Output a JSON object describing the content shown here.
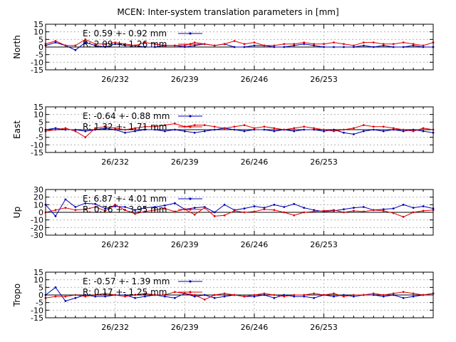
{
  "title": "MCEN: Inter-system translation parameters in [mm]",
  "colors": {
    "E": "#0000b4",
    "R": "#dd0000",
    "grid": "#a8a8a8"
  },
  "chart_data": [
    {
      "type": "line",
      "ylabel": "North",
      "xlim": [
        225,
        264
      ],
      "ylim": [
        -15,
        15
      ],
      "yticks": [
        "15",
        "10",
        "5",
        "0",
        "-5",
        "-10",
        "-15"
      ],
      "ytick_values": [
        15,
        10,
        5,
        0,
        -5,
        -10,
        -15
      ],
      "xticks": [
        "26/232",
        "26/239",
        "26/246",
        "26/253"
      ],
      "xtick_values": [
        232,
        239,
        246,
        253
      ],
      "grid": true,
      "legend_placement": "top-left",
      "x": [
        225,
        226,
        227,
        228,
        229,
        230,
        231,
        232,
        233,
        234,
        235,
        236,
        237,
        238,
        239,
        240,
        241,
        242,
        243,
        244,
        245,
        246,
        247,
        248,
        249,
        250,
        251,
        252,
        253,
        254,
        255,
        256,
        257,
        258,
        259,
        260,
        261,
        262,
        263,
        264
      ],
      "series": [
        {
          "name": "E",
          "legend": "E:  0.59 +- 0.92 mm",
          "values": [
            1,
            3,
            1,
            -2,
            3,
            1,
            0,
            2,
            1,
            1,
            0,
            0,
            1,
            1,
            0,
            1,
            2,
            1,
            2,
            0,
            0,
            1,
            1,
            0,
            0,
            1,
            2,
            1,
            0,
            0,
            0,
            0,
            1,
            0,
            1,
            0,
            0,
            1,
            0,
            0
          ]
        },
        {
          "name": "R",
          "legend": "R:  2.09 +- 1.26 mm",
          "values": [
            2,
            4,
            1,
            1,
            5,
            2,
            2,
            3,
            2,
            1,
            3,
            2,
            1,
            1,
            1,
            3,
            2,
            1,
            2,
            4,
            2,
            3,
            1,
            1,
            2,
            2,
            3,
            2,
            2,
            3,
            2,
            1,
            3,
            3,
            2,
            2,
            3,
            2,
            1,
            3
          ]
        }
      ]
    },
    {
      "type": "line",
      "ylabel": "East",
      "xlim": [
        225,
        264
      ],
      "ylim": [
        -15,
        15
      ],
      "yticks": [
        "15",
        "10",
        "5",
        "0",
        "-5",
        "-10",
        "-15"
      ],
      "ytick_values": [
        15,
        10,
        5,
        0,
        -5,
        -10,
        -15
      ],
      "xticks": [
        "26/232",
        "26/239",
        "26/246",
        "26/253"
      ],
      "xtick_values": [
        232,
        239,
        246,
        253
      ],
      "grid": true,
      "legend_placement": "top-left",
      "x": [
        225,
        226,
        227,
        228,
        229,
        230,
        231,
        232,
        233,
        234,
        235,
        236,
        237,
        238,
        239,
        240,
        241,
        242,
        243,
        244,
        245,
        246,
        247,
        248,
        249,
        250,
        251,
        252,
        253,
        254,
        255,
        256,
        257,
        258,
        259,
        260,
        261,
        262,
        263,
        264
      ],
      "series": [
        {
          "name": "E",
          "legend": "E:  -0.64 +- 0.88 mm",
          "values": [
            0,
            1,
            0,
            0,
            -1,
            0,
            1,
            0,
            -2,
            -1,
            0,
            0,
            -1,
            0,
            -1,
            -2,
            -1,
            0,
            1,
            0,
            -1,
            0,
            0,
            -1,
            0,
            -1,
            0,
            0,
            -1,
            0,
            -2,
            -3,
            -1,
            0,
            -1,
            0,
            -1,
            0,
            -1,
            -2
          ]
        },
        {
          "name": "R",
          "legend": "R:  1.32 +- 1.71 mm",
          "values": [
            -1,
            0,
            1,
            -1,
            -5,
            1,
            2,
            1,
            0,
            1,
            2,
            2,
            3,
            4,
            2,
            3,
            3,
            2,
            1,
            2,
            3,
            1,
            2,
            1,
            0,
            1,
            2,
            1,
            0,
            -1,
            0,
            1,
            3,
            2,
            2,
            1,
            0,
            -1,
            1,
            0
          ]
        }
      ]
    },
    {
      "type": "line",
      "ylabel": "Up",
      "xlim": [
        225,
        264
      ],
      "ylim": [
        -30,
        30
      ],
      "yticks": [
        "30",
        "20",
        "10",
        "0",
        "-10",
        "-20",
        "-30"
      ],
      "ytick_values": [
        30,
        20,
        10,
        0,
        -10,
        -20,
        -30
      ],
      "xticks": [
        "26/232",
        "26/239",
        "26/246",
        "26/253"
      ],
      "xtick_values": [
        232,
        239,
        246,
        253
      ],
      "grid": true,
      "legend_placement": "top-left",
      "x": [
        225,
        226,
        227,
        228,
        229,
        230,
        231,
        232,
        233,
        234,
        235,
        236,
        237,
        238,
        239,
        240,
        241,
        242,
        243,
        244,
        245,
        246,
        247,
        248,
        249,
        250,
        251,
        252,
        253,
        254,
        255,
        256,
        257,
        258,
        259,
        260,
        261,
        262,
        263,
        264
      ],
      "series": [
        {
          "name": "E",
          "legend": "E:  6.87 +- 4.01 mm",
          "values": [
            10,
            -5,
            17,
            7,
            12,
            11,
            5,
            8,
            7,
            3,
            6,
            7,
            9,
            12,
            4,
            6,
            7,
            0,
            10,
            3,
            5,
            8,
            6,
            10,
            7,
            11,
            6,
            3,
            1,
            2,
            4,
            6,
            7,
            3,
            4,
            5,
            10,
            6,
            8,
            5
          ]
        },
        {
          "name": "R",
          "legend": "R:  0.76 +- 3.95 mm",
          "values": [
            0,
            3,
            6,
            3,
            4,
            7,
            2,
            10,
            3,
            -2,
            1,
            3,
            5,
            1,
            4,
            -3,
            6,
            -5,
            -4,
            2,
            0,
            1,
            4,
            3,
            0,
            -4,
            0,
            1,
            2,
            3,
            0,
            2,
            1,
            3,
            2,
            -1,
            -6,
            0,
            2,
            3
          ]
        }
      ]
    },
    {
      "type": "line",
      "ylabel": "Tropo",
      "xlim": [
        225,
        264
      ],
      "ylim": [
        -15,
        15
      ],
      "yticks": [
        "15",
        "10",
        "5",
        "0",
        "-5",
        "-10",
        "-15"
      ],
      "ytick_values": [
        15,
        10,
        5,
        0,
        -5,
        -10,
        -15
      ],
      "xticks": [
        "26/232",
        "26/239",
        "26/246",
        "26/253"
      ],
      "xtick_values": [
        232,
        239,
        246,
        253
      ],
      "grid": true,
      "legend_placement": "top-left",
      "x": [
        225,
        226,
        227,
        228,
        229,
        230,
        231,
        232,
        233,
        234,
        235,
        236,
        237,
        238,
        239,
        240,
        241,
        242,
        243,
        244,
        245,
        246,
        247,
        248,
        249,
        250,
        251,
        252,
        253,
        254,
        255,
        256,
        257,
        258,
        259,
        260,
        261,
        262,
        263,
        264
      ],
      "series": [
        {
          "name": "E",
          "legend": "E:  -0.57 +- 1.39 mm",
          "values": [
            0,
            5,
            -4,
            -2,
            0,
            -1,
            -1,
            0,
            0,
            -2,
            -1,
            0,
            -1,
            -2,
            1,
            -1,
            0,
            -2,
            -1,
            0,
            -1,
            -1,
            0,
            -2,
            0,
            -1,
            -1,
            -2,
            0,
            -1,
            0,
            -1,
            0,
            0,
            -1,
            0,
            -2,
            -1,
            0,
            1
          ]
        },
        {
          "name": "R",
          "legend": "R:  0.17 +- 1.25 mm",
          "values": [
            -2,
            -1,
            -1,
            0,
            -1,
            0,
            1,
            0,
            -1,
            0,
            1,
            0,
            0,
            2,
            1,
            0,
            -3,
            0,
            1,
            0,
            -1,
            0,
            1,
            0,
            -1,
            0,
            0,
            1,
            0,
            1,
            -1,
            0,
            0,
            1,
            0,
            1,
            2,
            1,
            0,
            1
          ]
        }
      ]
    }
  ]
}
